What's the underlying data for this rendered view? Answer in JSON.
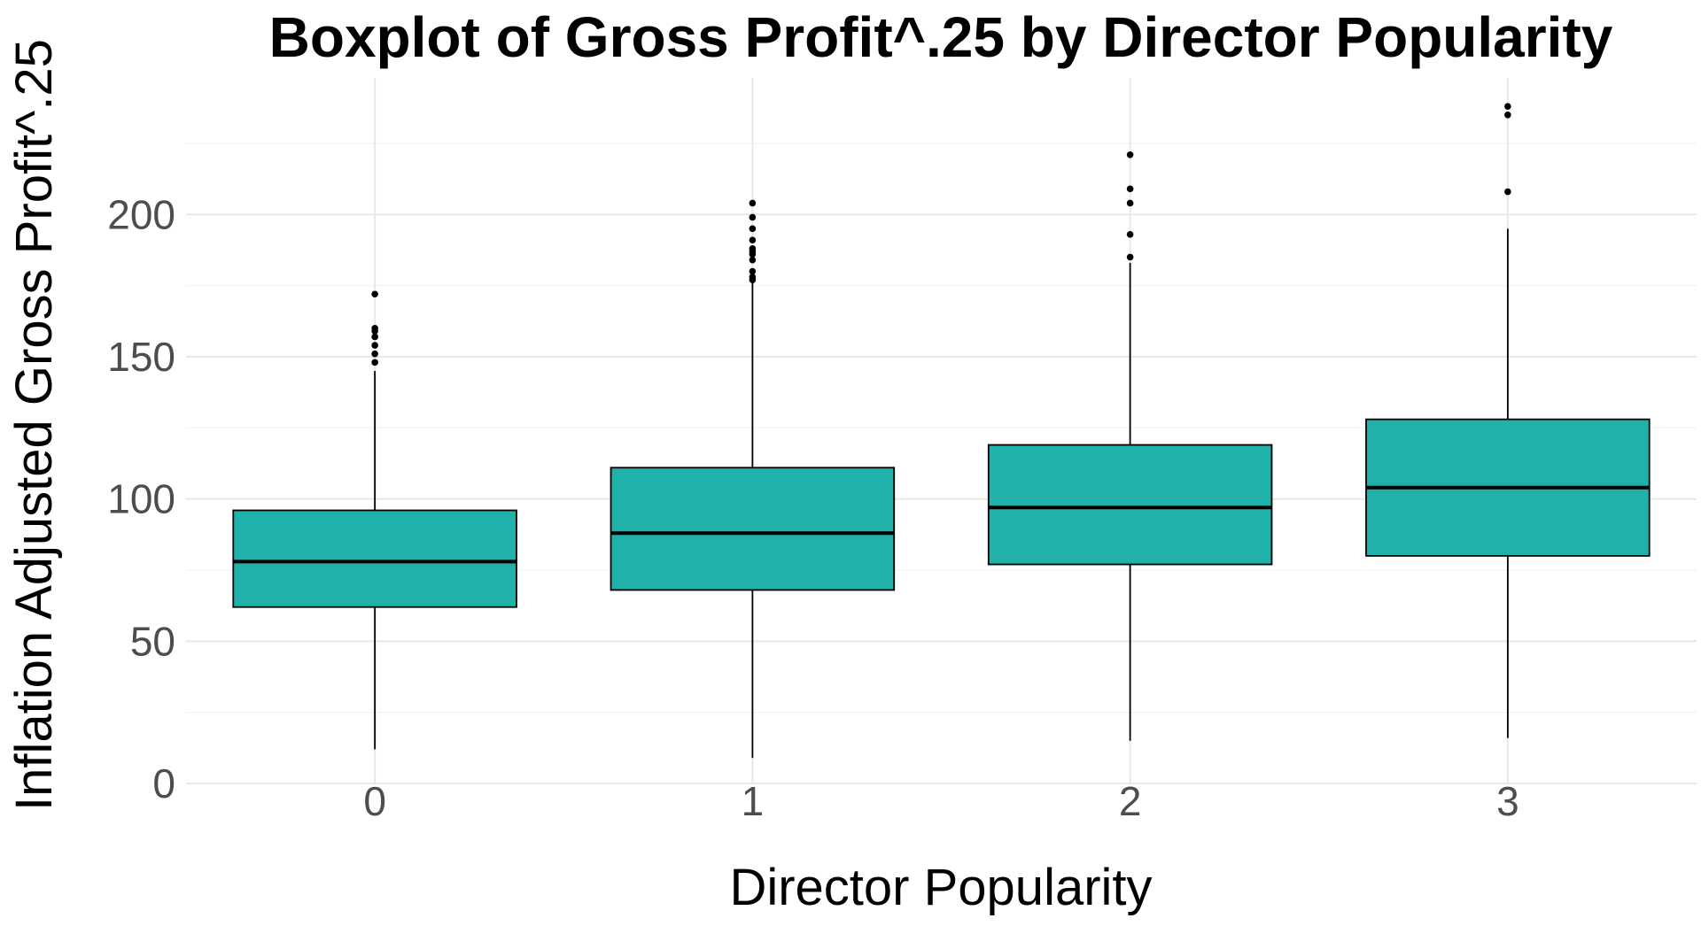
{
  "chart_data": {
    "type": "boxplot",
    "title": "Boxplot of Gross Profit^.25 by Director Popularity",
    "xlabel": "Director Popularity",
    "ylabel": "Inflation Adjusted Gross Profit^.25",
    "categories": [
      "0",
      "1",
      "2",
      "3"
    ],
    "ylim": [
      0,
      248
    ],
    "yticks": [
      0,
      50,
      100,
      150,
      200
    ],
    "grid": true,
    "colors": {
      "box_fill": "#20b2aa",
      "box_stroke": "#000000",
      "grid_major": "#e6e6e6",
      "grid_minor": "#f2f2f2"
    },
    "boxes": [
      {
        "category": "0",
        "whisker_low": 12,
        "q1": 62,
        "median": 78,
        "q3": 96,
        "whisker_high": 145,
        "outliers": [
          148,
          151,
          154,
          157,
          159,
          160,
          172
        ]
      },
      {
        "category": "1",
        "whisker_low": 9,
        "q1": 68,
        "median": 88,
        "q3": 111,
        "whisker_high": 176,
        "outliers": [
          177,
          178,
          180,
          184,
          186,
          187,
          188,
          191,
          195,
          199,
          204
        ]
      },
      {
        "category": "2",
        "whisker_low": 15,
        "q1": 77,
        "median": 97,
        "q3": 119,
        "whisker_high": 183,
        "outliers": [
          185,
          193,
          204,
          209,
          221
        ]
      },
      {
        "category": "3",
        "whisker_low": 16,
        "q1": 80,
        "median": 104,
        "q3": 128,
        "whisker_high": 195,
        "outliers": [
          208,
          235,
          238
        ]
      }
    ]
  }
}
